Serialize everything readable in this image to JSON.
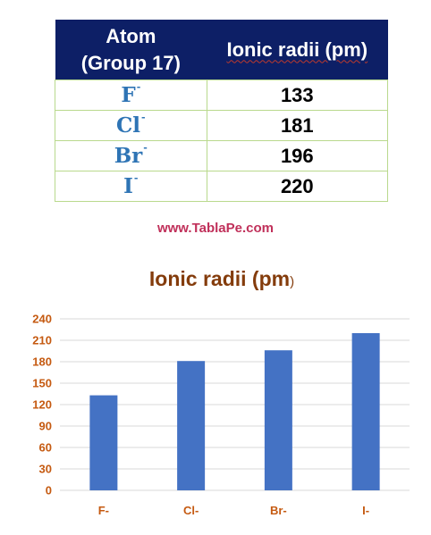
{
  "table": {
    "header_atom_line1": "Atom",
    "header_atom_line2": "(Group 17)",
    "header_radii": "Ionic radii (pm)",
    "rows": [
      {
        "symbol": "F",
        "charge": "-",
        "value": "133"
      },
      {
        "symbol": "Cl",
        "charge": "-",
        "value": "181"
      },
      {
        "symbol": "Br",
        "charge": "-",
        "value": "196"
      },
      {
        "symbol": "I",
        "charge": "-",
        "value": "220"
      }
    ]
  },
  "watermark": "www.TablaPe.com",
  "colors": {
    "header_bg": "#0d1f66",
    "table_border": "#b9d98d",
    "atom_text": "#2e74b5",
    "bar": "#4472c4",
    "axis_text": "#c55a11",
    "title_text": "#843c0c",
    "watermark": "#c0305a"
  },
  "chart_data": {
    "type": "bar",
    "title": "Ionic radii (pm",
    "title_tail": ")",
    "categories": [
      "F-",
      "Cl-",
      "Br-",
      "I-"
    ],
    "values": [
      133,
      181,
      196,
      220
    ],
    "ylim": [
      0,
      240
    ],
    "yticks": [
      0,
      30,
      60,
      90,
      120,
      150,
      180,
      210,
      240
    ],
    "xlabel": "",
    "ylabel": "",
    "grid": true,
    "legend": false
  }
}
